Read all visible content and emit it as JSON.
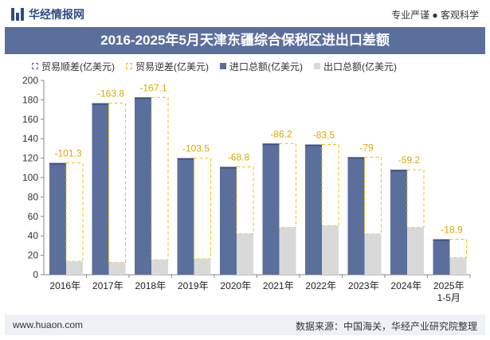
{
  "header": {
    "brand_name": "华经情报网",
    "tagline": "专业严谨 ● 客观科学",
    "title": "2016-2025年5月天津东疆综合保税区进出口差额"
  },
  "colors": {
    "import": "#5b6f9d",
    "export": "#d9d9d9",
    "deficit": "#f2c200",
    "surplus": "#5b6f9d",
    "title_bg": "#5b6f9d"
  },
  "chart_data": {
    "type": "bar",
    "title": "2016-2025年5月天津东疆综合保税区进出口差额",
    "categories": [
      "2016年",
      "2017年",
      "2018年",
      "2019年",
      "2020年",
      "2021年",
      "2022年",
      "2023年",
      "2024年",
      "2025年 1-5月"
    ],
    "series": [
      {
        "name": "进口总额(亿美元)",
        "values": [
          115.0,
          176.5,
          182.5,
          120.0,
          111.0,
          135.0,
          134.0,
          121.0,
          108.0,
          36.5
        ]
      },
      {
        "name": "出口总额(亿美元)",
        "values": [
          13.7,
          12.7,
          15.4,
          16.5,
          42.2,
          48.8,
          50.5,
          42.0,
          48.8,
          17.6
        ]
      },
      {
        "name": "贸易逆差(亿美元)",
        "values": [
          -101.3,
          -163.8,
          -167.1,
          -103.5,
          -68.8,
          -86.2,
          -83.5,
          -79,
          -59.2,
          -18.9
        ]
      }
    ],
    "legend": [
      "贸易顺差(亿美元)",
      "贸易逆差(亿美元)",
      "进口总额(亿美元)",
      "出口总额(亿美元)"
    ],
    "legend_position": "top",
    "ylim": [
      0,
      200
    ],
    "yticks": [
      0,
      20,
      40,
      60,
      80,
      100,
      120,
      140,
      160,
      180,
      200
    ],
    "grid": false
  },
  "footer": {
    "site": "www.huaon.com",
    "source": "数据来源：中国海关，华经产业研究院整理"
  }
}
